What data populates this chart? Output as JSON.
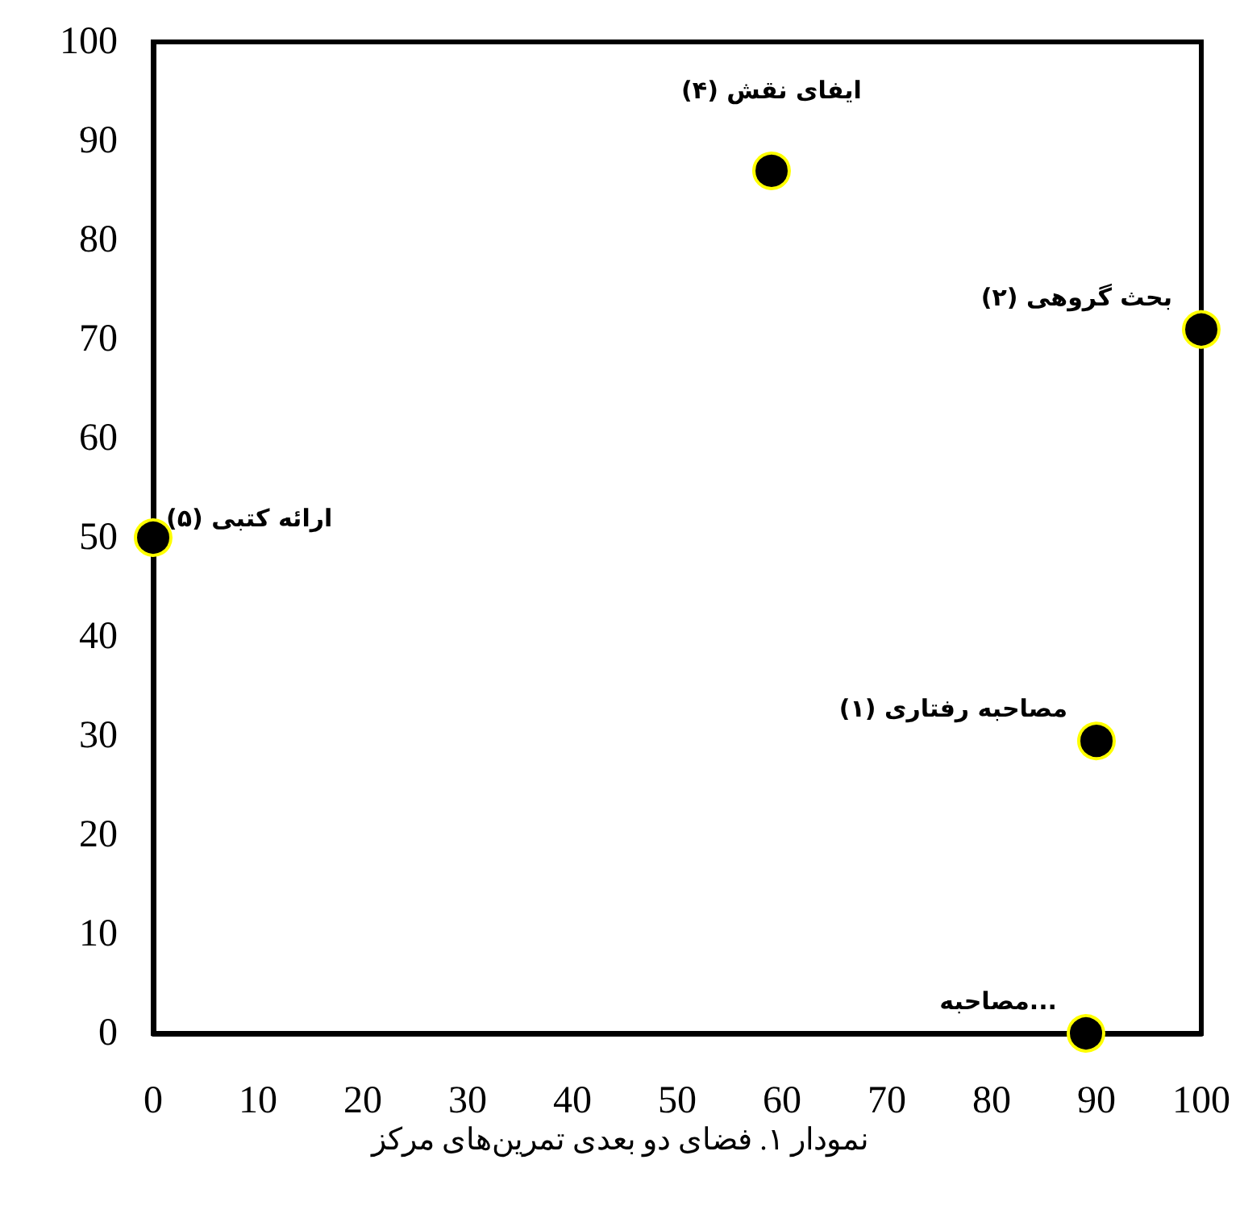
{
  "chart_data": {
    "type": "scatter",
    "title": "نمودار ۱. فضای دو بعدی تمرین‌های مرکز",
    "x": [
      0,
      59,
      100,
      90,
      89
    ],
    "series": [
      {
        "color": "#000000",
        "values": [
          50,
          87,
          71,
          29.5,
          0
        ]
      }
    ],
    "annotations": [
      {
        "text": "ارائه کتبی (۵)",
        "x": 0,
        "y": 50
      },
      {
        "text": "ایفای نقش (۴)",
        "x": 59,
        "y": 87
      },
      {
        "text": "بحث گروهی (۲)",
        "x": 100,
        "y": 71
      },
      {
        "text": "مصاحبه رفتاری (۱)",
        "x": 90,
        "y": 29.5
      },
      {
        "text": "مصاحبه...",
        "x": 89,
        "y": 0
      }
    ],
    "xlim": [
      0,
      100
    ],
    "ylim": [
      0,
      100
    ],
    "xticks": [
      0,
      10,
      20,
      30,
      40,
      50,
      60,
      70,
      80,
      90,
      100
    ],
    "yticks": [
      0,
      10,
      20,
      30,
      40,
      50,
      60,
      70,
      80,
      90,
      100
    ],
    "grid": false,
    "marker": "circle"
  }
}
